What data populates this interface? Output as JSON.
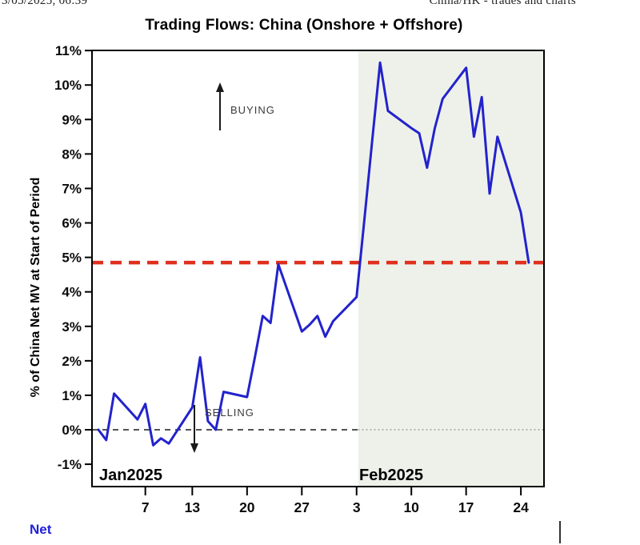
{
  "page": {
    "header_left": "3/05/2025, 06:39",
    "header_right": "China/HK - trades and charts"
  },
  "chart_data": {
    "type": "line",
    "title": "Trading Flows: China (Onshore + Offshore)",
    "ylabel": "% of China Net MV at Start of Period",
    "xlabel": "",
    "ylim": [
      -1.65,
      11
    ],
    "grid": "off",
    "yticks": [
      {
        "label": "11%",
        "value": 11
      },
      {
        "label": "10%",
        "value": 10
      },
      {
        "label": "9%",
        "value": 9
      },
      {
        "label": "8%",
        "value": 8
      },
      {
        "label": "7%",
        "value": 7
      },
      {
        "label": "6%",
        "value": 6
      },
      {
        "label": "5%",
        "value": 5
      },
      {
        "label": "4%",
        "value": 4
      },
      {
        "label": "3%",
        "value": 3
      },
      {
        "label": "2%",
        "value": 2
      },
      {
        "label": "1%",
        "value": 1
      },
      {
        "label": "0%",
        "value": 0
      },
      {
        "label": "-1%",
        "value": -1
      }
    ],
    "xticks": [
      {
        "label": "7",
        "day": 6
      },
      {
        "label": "13",
        "day": 12
      },
      {
        "label": "20",
        "day": 19
      },
      {
        "label": "27",
        "day": 26
      },
      {
        "label": "3",
        "day": 33
      },
      {
        "label": "10",
        "day": 40
      },
      {
        "label": "17",
        "day": 47
      },
      {
        "label": "24",
        "day": 54
      }
    ],
    "month_labels": [
      "Jan2025",
      "Feb2025"
    ],
    "annotations": {
      "buying": "BUYING",
      "selling": "SELLING"
    },
    "legend": {
      "position": "bottom-left",
      "entries": [
        "Net"
      ]
    },
    "reference_line": {
      "value": 4.85,
      "color": "#e0301e",
      "style": "dashed"
    },
    "zero_line": {
      "value": 0,
      "color": "#1a1a1a",
      "style": "dashed"
    },
    "highlight_region": {
      "start_day": 33,
      "color": "#eef1ea"
    },
    "series": [
      {
        "name": "Net",
        "color": "#2323cc",
        "points": [
          {
            "date": "Jan 1",
            "day": 0,
            "value": 0.0
          },
          {
            "date": "Jan 2",
            "day": 1,
            "value": -0.3
          },
          {
            "date": "Jan 3",
            "day": 2,
            "value": 1.05
          },
          {
            "date": "Jan 6",
            "day": 5,
            "value": 0.3
          },
          {
            "date": "Jan 7",
            "day": 6,
            "value": 0.75
          },
          {
            "date": "Jan 8",
            "day": 7,
            "value": -0.45
          },
          {
            "date": "Jan 9",
            "day": 8,
            "value": -0.25
          },
          {
            "date": "Jan 10",
            "day": 9,
            "value": -0.4
          },
          {
            "date": "Jan 13",
            "day": 12,
            "value": 0.65
          },
          {
            "date": "Jan 14",
            "day": 13,
            "value": 2.1
          },
          {
            "date": "Jan 15",
            "day": 14,
            "value": 0.25
          },
          {
            "date": "Jan 16",
            "day": 15,
            "value": 0.0
          },
          {
            "date": "Jan 17",
            "day": 16,
            "value": 1.1
          },
          {
            "date": "Jan 20",
            "day": 19,
            "value": 0.95
          },
          {
            "date": "Jan 21",
            "day": 20,
            "value": 2.1
          },
          {
            "date": "Jan 22",
            "day": 21,
            "value": 3.3
          },
          {
            "date": "Jan 23",
            "day": 22,
            "value": 3.1
          },
          {
            "date": "Jan 24",
            "day": 23,
            "value": 4.8
          },
          {
            "date": "Jan 27",
            "day": 26,
            "value": 2.85
          },
          {
            "date": "Jan 28",
            "day": 27,
            "value": 3.05
          },
          {
            "date": "Jan 29",
            "day": 28,
            "value": 3.3
          },
          {
            "date": "Jan 30",
            "day": 29,
            "value": 2.7
          },
          {
            "date": "Jan 31",
            "day": 30,
            "value": 3.15
          },
          {
            "date": "Feb 3",
            "day": 33,
            "value": 3.85
          },
          {
            "date": "Feb 4",
            "day": 34,
            "value": 6.1
          },
          {
            "date": "Feb 5",
            "day": 35,
            "value": 8.4
          },
          {
            "date": "Feb 6",
            "day": 36,
            "value": 10.65
          },
          {
            "date": "Feb 7",
            "day": 37,
            "value": 9.25
          },
          {
            "date": "Feb 10",
            "day": 40,
            "value": 8.75
          },
          {
            "date": "Feb 11",
            "day": 41,
            "value": 8.6
          },
          {
            "date": "Feb 12",
            "day": 42,
            "value": 7.6
          },
          {
            "date": "Feb 13",
            "day": 43,
            "value": 8.75
          },
          {
            "date": "Feb 14",
            "day": 44,
            "value": 9.6
          },
          {
            "date": "Feb 17",
            "day": 47,
            "value": 10.5
          },
          {
            "date": "Feb 18",
            "day": 48,
            "value": 8.5
          },
          {
            "date": "Feb 19",
            "day": 49,
            "value": 9.65
          },
          {
            "date": "Feb 20",
            "day": 50,
            "value": 6.85
          },
          {
            "date": "Feb 21",
            "day": 51,
            "value": 8.5
          },
          {
            "date": "Feb 24",
            "day": 54,
            "value": 6.3
          },
          {
            "date": "Feb 25",
            "day": 55,
            "value": 4.85
          }
        ]
      }
    ]
  }
}
